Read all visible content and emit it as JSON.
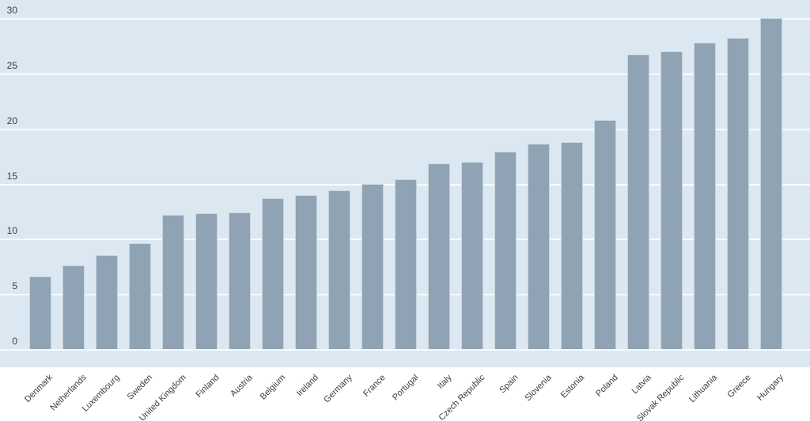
{
  "chart_data": {
    "type": "bar",
    "title": "",
    "xlabel": "",
    "ylabel": "",
    "categories": [
      "Denmark",
      "Netherlands",
      "Luxembourg",
      "Sweden",
      "United Kingdom",
      "Finland",
      "Austria",
      "Belgium",
      "Ireland",
      "Germany",
      "France",
      "Portugal",
      "Italy",
      "Czech Republic",
      "Spain",
      "Slovenia",
      "Estonia",
      "Poland",
      "Latvia",
      "Slovak Republic",
      "Lithuania",
      "Greece",
      "Hungary"
    ],
    "values": [
      6.6,
      7.6,
      8.5,
      9.6,
      12.2,
      12.3,
      12.4,
      13.7,
      14.0,
      14.4,
      15.0,
      15.4,
      16.8,
      17.0,
      17.9,
      18.6,
      18.8,
      20.8,
      26.7,
      27.0,
      27.8,
      28.2,
      30.0
    ],
    "ylim": [
      0,
      30
    ],
    "yticks": [
      0,
      5,
      10,
      15,
      20,
      25,
      30
    ],
    "grid": "horizontal",
    "legend": "none",
    "colors": {
      "plot_background": "#dce8f1",
      "page_background": "#ffffff",
      "bar_fill": "#8fa3b4",
      "bar_border": "#c6d5de",
      "gridline": "#f7fbfd",
      "text": "#3d3d3d"
    }
  }
}
